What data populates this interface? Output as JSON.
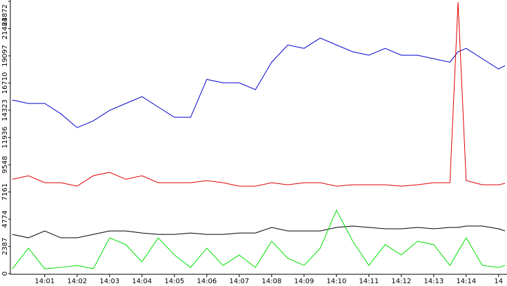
{
  "chart_data": {
    "type": "line",
    "x": [
      0,
      0.5,
      1,
      1.5,
      2,
      2.5,
      3,
      3.5,
      4,
      4.5,
      5,
      5.5,
      6,
      6.5,
      7,
      7.5,
      8,
      8.5,
      9,
      9.5,
      10,
      10.5,
      11,
      11.5,
      12,
      12.5,
      13,
      13.5,
      13.75,
      14,
      14.5,
      15,
      15.2
    ],
    "xlim": [
      -0.06,
      15.26
    ],
    "xticks": [
      {
        "value": 1,
        "label": "14:01"
      },
      {
        "value": 2,
        "label": "14:02"
      },
      {
        "value": 3,
        "label": "14:03"
      },
      {
        "value": 4,
        "label": "14:04"
      },
      {
        "value": 5,
        "label": "14:05"
      },
      {
        "value": 6,
        "label": "14:06"
      },
      {
        "value": 7,
        "label": "14:07"
      },
      {
        "value": 8,
        "label": "14:08"
      },
      {
        "value": 9,
        "label": "14:09"
      },
      {
        "value": 10,
        "label": "14:10"
      },
      {
        "value": 11,
        "label": "14:11"
      },
      {
        "value": 12,
        "label": "14:12"
      },
      {
        "value": 13,
        "label": "14:13"
      },
      {
        "value": 14,
        "label": "14:14"
      },
      {
        "value": 15,
        "label": "14"
      }
    ],
    "ylim": [
      0,
      23872
    ],
    "yticks": [
      0,
      2387,
      4774,
      7161,
      9548,
      11936,
      14323,
      16710,
      19097,
      21484,
      23872
    ],
    "series": [
      {
        "color": "#0000cc",
        "values": [
          15220,
          14920,
          14920,
          14010,
          12800,
          13400,
          14310,
          14920,
          15520,
          14610,
          13710,
          13710,
          17030,
          16730,
          16730,
          16130,
          18540,
          20050,
          19750,
          20660,
          20050,
          19450,
          19150,
          19750,
          19150,
          19150,
          18840,
          18540,
          19450,
          19750,
          18840,
          17940,
          18240
        ]
      },
      {
        "color": "#e00000",
        "values": [
          8270,
          8580,
          7970,
          7970,
          7670,
          8580,
          8880,
          8270,
          8580,
          7970,
          7970,
          7970,
          8150,
          7970,
          7670,
          7670,
          7970,
          7790,
          7970,
          7970,
          7670,
          7790,
          7790,
          7790,
          7670,
          7790,
          7970,
          7970,
          23800,
          8150,
          7790,
          7790,
          7910
        ]
      },
      {
        "color": "#000000",
        "values": [
          3440,
          3140,
          3740,
          3140,
          3140,
          3440,
          3740,
          3740,
          3560,
          3440,
          3440,
          3560,
          3440,
          3440,
          3560,
          3560,
          4050,
          3740,
          3740,
          3740,
          4050,
          4170,
          4050,
          3930,
          3930,
          4050,
          3930,
          4050,
          4050,
          4170,
          4170,
          3930,
          3740
        ]
      },
      {
        "color": "#00e000",
        "values": [
          420,
          2230,
          420,
          540,
          720,
          420,
          3140,
          2540,
          1030,
          3140,
          1630,
          540,
          2230,
          720,
          1630,
          540,
          2840,
          1330,
          720,
          2230,
          5560,
          2840,
          720,
          2540,
          1630,
          2840,
          2540,
          720,
          1930,
          3140,
          720,
          540,
          720
        ]
      }
    ]
  }
}
